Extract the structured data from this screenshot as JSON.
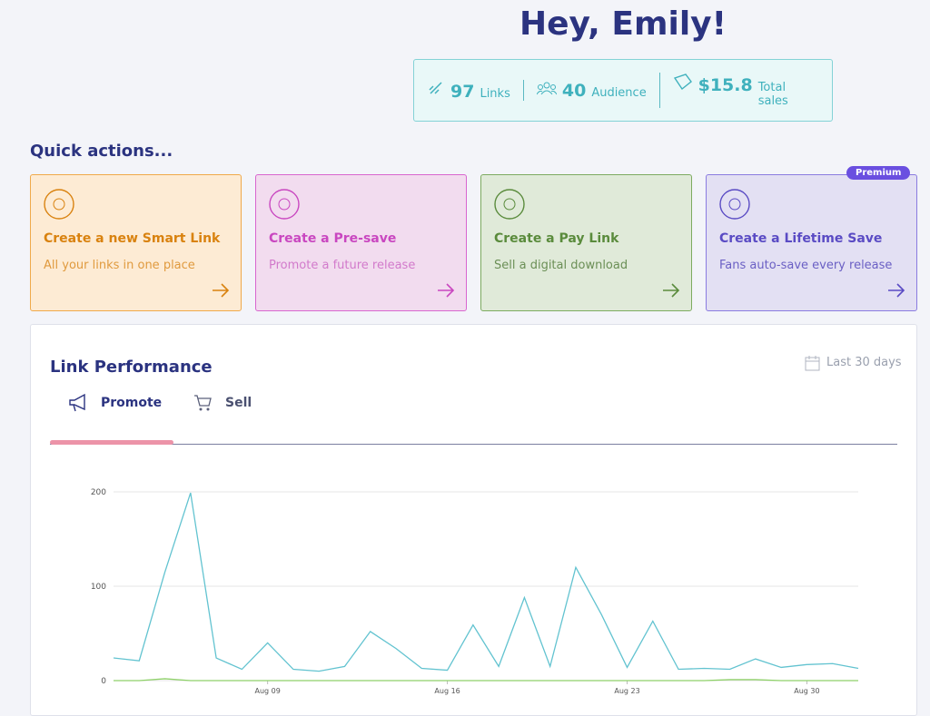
{
  "greeting": "Hey, Emily!",
  "stats": [
    {
      "value": "97",
      "label": "Links"
    },
    {
      "value": "40",
      "label": "Audience"
    },
    {
      "value": "$15.8",
      "label": "Total sales"
    }
  ],
  "quick_actions": {
    "title": "Quick actions...",
    "cards": [
      {
        "title": "Create a new Smart Link",
        "subtitle": "All your links in one place"
      },
      {
        "title": "Create a Pre-save",
        "subtitle": "Promote a future release"
      },
      {
        "title": "Create a Pay Link",
        "subtitle": "Sell a digital download"
      },
      {
        "title": "Create a Lifetime Save",
        "subtitle": "Fans auto-save every release",
        "badge": "Premium"
      }
    ]
  },
  "performance": {
    "title": "Link Performance",
    "range": "Last 30 days",
    "tabs": [
      "Promote",
      "Sell"
    ]
  },
  "chart_data": {
    "type": "line",
    "categories": [
      null,
      null,
      null,
      null,
      null,
      null,
      "Aug 09",
      null,
      null,
      null,
      null,
      null,
      null,
      "Aug 16",
      null,
      null,
      null,
      null,
      null,
      null,
      "Aug 23",
      null,
      null,
      null,
      null,
      null,
      null,
      "Aug 30",
      null,
      null
    ],
    "series": [
      {
        "color": "#62c3d0",
        "values": [
          24,
          21,
          115,
          199,
          24,
          12,
          40,
          12,
          10,
          15,
          52,
          34,
          13,
          11,
          59,
          15,
          88,
          15,
          120,
          70,
          14,
          63,
          12,
          13,
          12,
          23,
          14,
          17,
          18,
          13
        ]
      },
      {
        "color": "#8fd16a",
        "values": [
          0,
          0,
          2,
          0,
          0,
          0,
          0,
          0,
          0,
          0,
          0,
          0,
          0,
          0,
          0,
          0,
          0,
          0,
          0,
          0,
          0,
          0,
          0,
          0,
          1,
          1,
          0,
          0,
          0,
          0
        ]
      }
    ],
    "ylim": [
      0,
      210
    ],
    "yticks": [
      0,
      100,
      200
    ],
    "grid": true
  }
}
